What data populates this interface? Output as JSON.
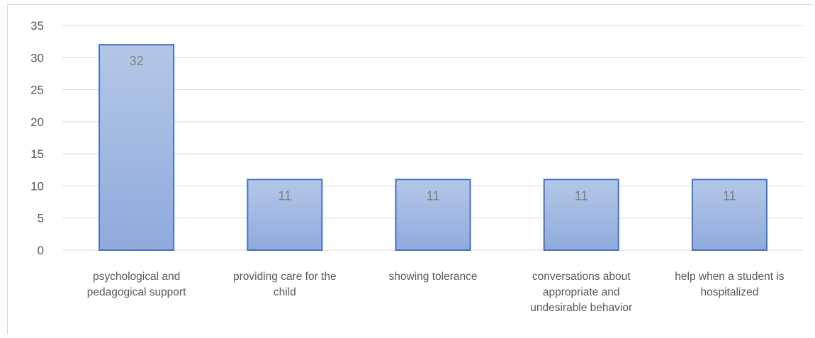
{
  "chart_data": {
    "type": "bar",
    "categories": [
      [
        "psychological and",
        "pedagogical support"
      ],
      [
        "providing care for the",
        "child"
      ],
      [
        "showing tolerance"
      ],
      [
        "conversations about",
        "appropriate and",
        "undesirable behavior"
      ],
      [
        "help when a student is",
        "hospitalized"
      ]
    ],
    "values": [
      32,
      11,
      11,
      11,
      11
    ],
    "ylim": [
      0,
      35
    ],
    "ytick_step": 5,
    "grid": true,
    "legend": "none",
    "title": "",
    "xlabel": "",
    "ylabel": "",
    "colors": {
      "bar_top": "#b4c7e7",
      "bar_bottom": "#8faadc",
      "bar_border": "#4472c4",
      "grid": "#d9d9d9",
      "text": "#595959",
      "data_label": "#7f7f7f"
    }
  }
}
